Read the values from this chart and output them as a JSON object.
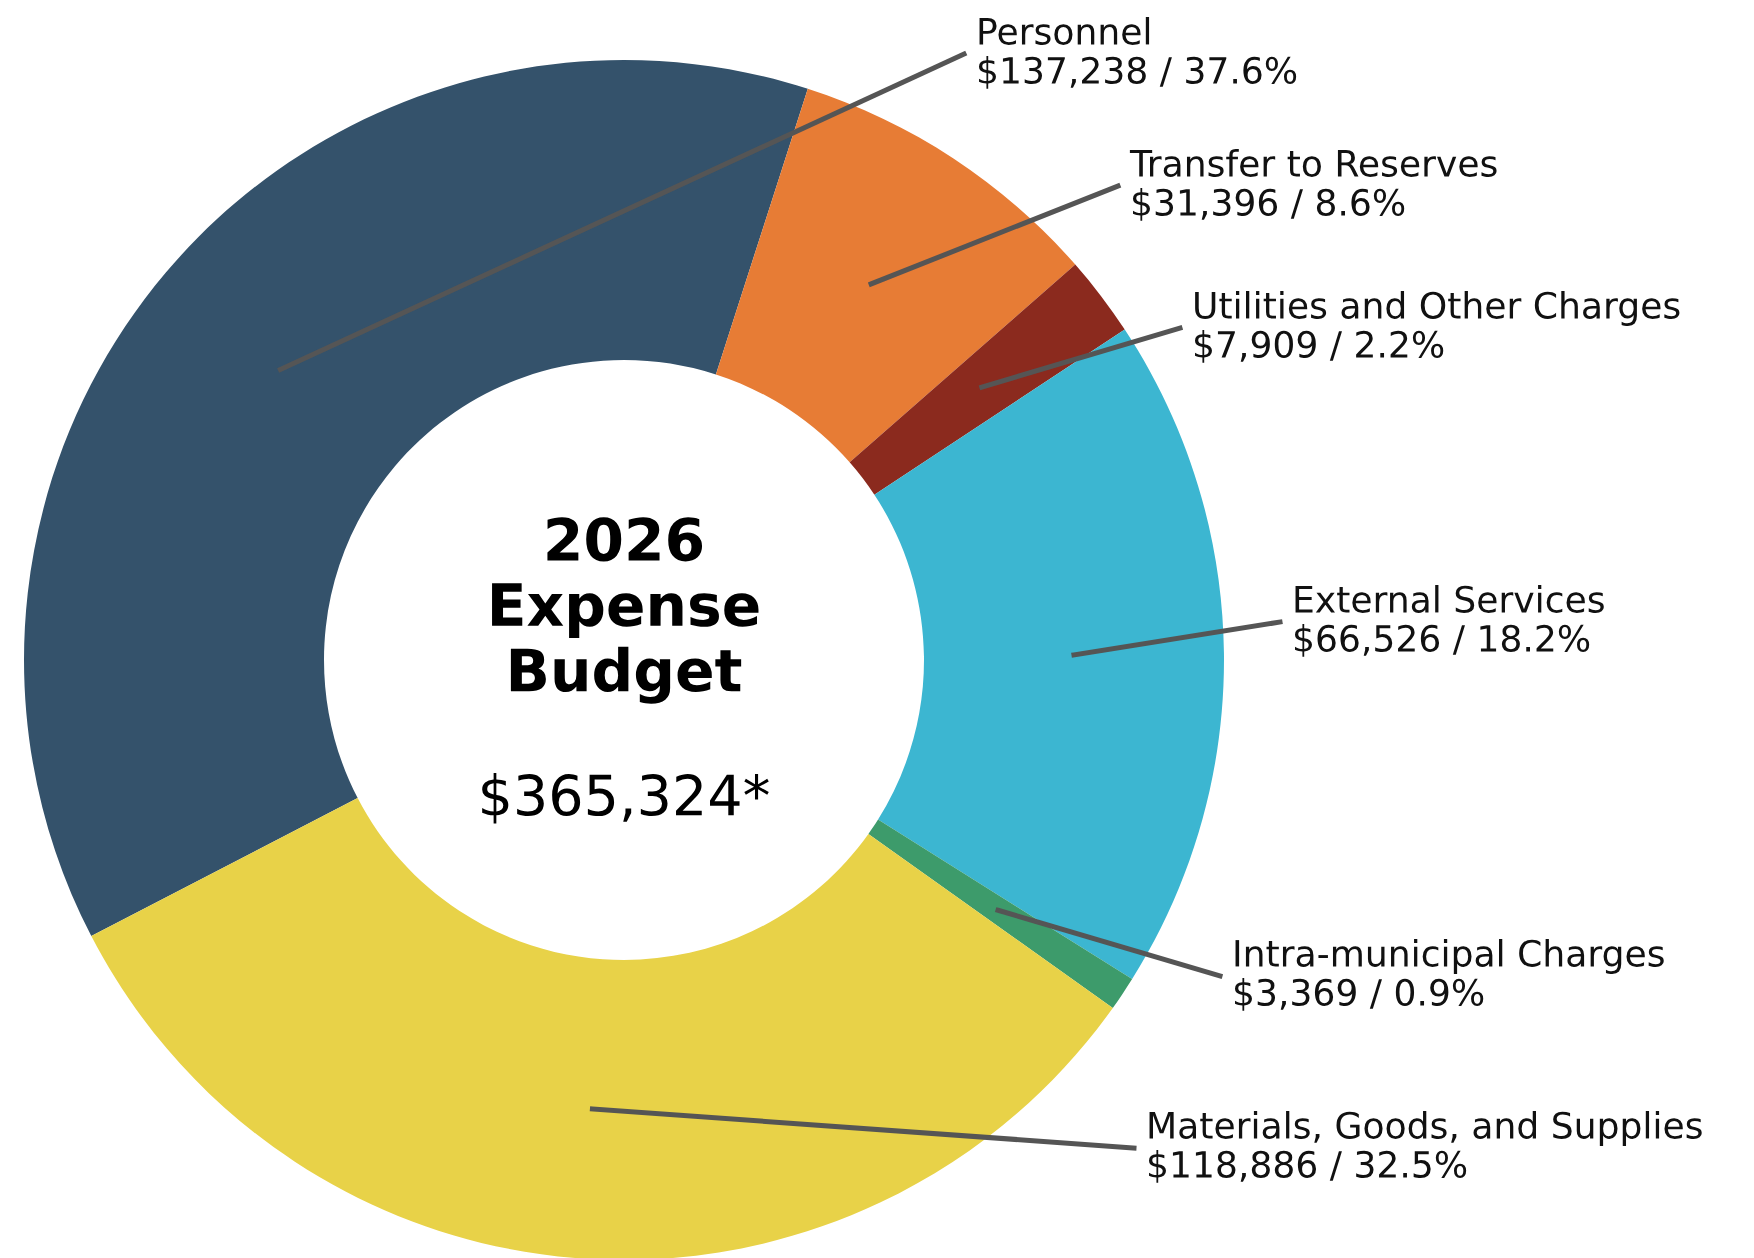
{
  "chart_data": {
    "type": "donut",
    "title": "2026\nExpense\nBudget",
    "categories": [
      "Personnel",
      "Transfer to Reserves",
      "Utilities and Other Charges",
      "External Services",
      "Intra-municipal Charges",
      "Materials, Goods, and Supplies"
    ],
    "values": [
      137238,
      31396,
      7909,
      66526,
      3369,
      118886
    ],
    "colors": [
      "#34526b",
      "#e77c35",
      "#8b2a1e",
      "#3cb6d1",
      "#3d9b6b",
      "#e8d248"
    ],
    "value_labels": [
      "$137,238 / 37.6%",
      "$31,396 / 8.6%",
      "$7,909 / 2.2%",
      "$66,526 / 18.2%",
      "$3,369 / 0.9%",
      "$118,886 / 32.5%"
    ],
    "annotations": [
      "$365,324*"
    ]
  }
}
